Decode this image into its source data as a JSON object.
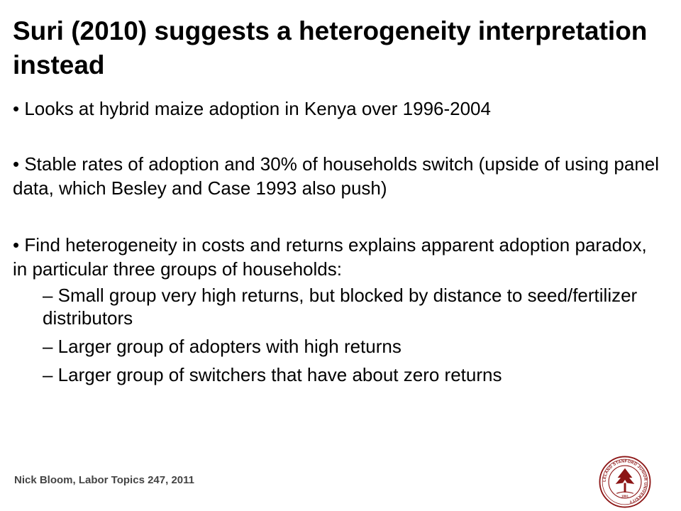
{
  "slide": {
    "title": "Suri (2010) suggests a heterogeneity interpretation instead",
    "bullets": [
      "• Looks at hybrid maize adoption in Kenya over 1996-2004",
      "• Stable rates of adoption and 30% of households switch (upside of using panel data, which Besley and Case 1993 also push)",
      "• Find heterogeneity in costs and returns explains apparent adoption paradox, in particular three groups of households:"
    ],
    "sub_bullets": [
      "– Small group very high returns, but blocked by distance to seed/fertilizer distributors",
      "– Larger group of adopters with high returns",
      "– Larger group of switchers that have about zero returns"
    ],
    "footer": "Nick Bloom, Labor Topics 247, 2011",
    "seal_text": "LELAND STANFORD JUNIOR UNIVERSITY",
    "seal_year": "1891",
    "colors": {
      "seal": "#8c1515",
      "footer": "#444444"
    },
    "icons": {
      "seal": "stanford-seal-icon"
    }
  }
}
